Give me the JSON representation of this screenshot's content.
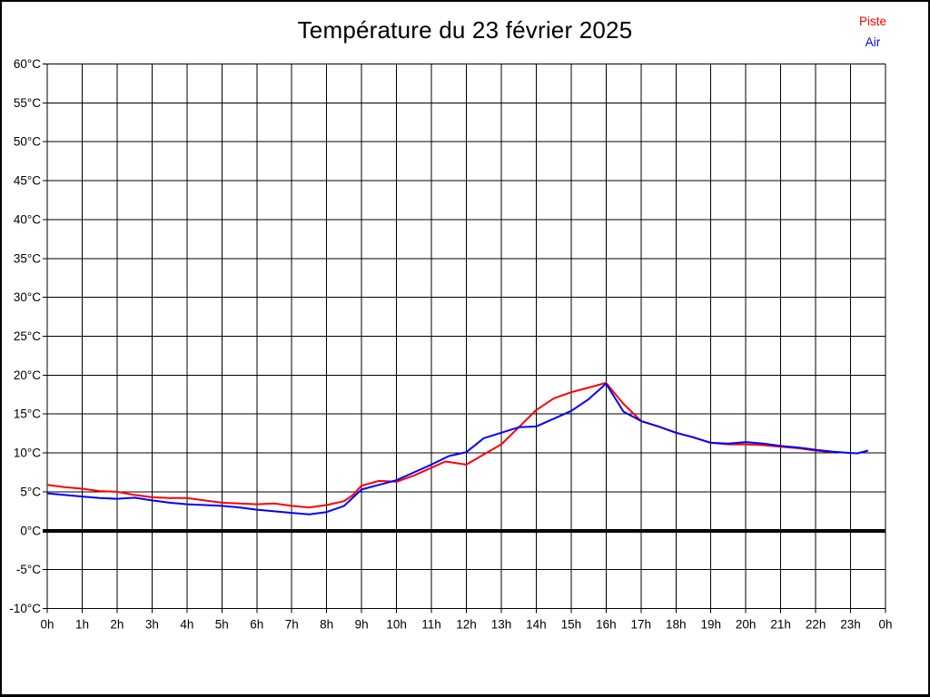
{
  "title": "Température du 23 février 2025",
  "legend": {
    "items": [
      {
        "label": "Piste",
        "color": "#ff0000"
      },
      {
        "label": "Air",
        "color": "#0000ff"
      }
    ]
  },
  "chart_data": {
    "type": "line",
    "title": "Température du 23 février 2025",
    "xlabel": "",
    "ylabel": "",
    "xlim": [
      0,
      24
    ],
    "ylim": [
      -10,
      60
    ],
    "y_step": 5,
    "x_step": 1,
    "grid": true,
    "zero_line_thick": true,
    "legend_position": "top-right",
    "x_tick_labels": [
      "0h",
      "1h",
      "2h",
      "3h",
      "4h",
      "5h",
      "6h",
      "7h",
      "8h",
      "9h",
      "10h",
      "11h",
      "12h",
      "13h",
      "14h",
      "15h",
      "16h",
      "17h",
      "18h",
      "19h",
      "20h",
      "21h",
      "22h",
      "23h",
      "0h"
    ],
    "y_tick_labels": [
      "60°C",
      "55°C",
      "50°C",
      "45°C",
      "40°C",
      "35°C",
      "30°C",
      "25°C",
      "20°C",
      "15°C",
      "10°C",
      "5°C",
      "0°C",
      "-5°C",
      "-10°C"
    ],
    "y_tick_values": [
      60,
      55,
      50,
      45,
      40,
      35,
      30,
      25,
      20,
      15,
      10,
      5,
      0,
      -5,
      -10
    ],
    "series": [
      {
        "name": "Piste",
        "color": "#ff0000",
        "points": [
          [
            0,
            5.9
          ],
          [
            0.5,
            5.6
          ],
          [
            1,
            5.4
          ],
          [
            1.5,
            5.1
          ],
          [
            2,
            5.0
          ],
          [
            2.5,
            4.6
          ],
          [
            3,
            4.3
          ],
          [
            3.5,
            4.2
          ],
          [
            4,
            4.2
          ],
          [
            4.5,
            3.9
          ],
          [
            5,
            3.6
          ],
          [
            5.5,
            3.5
          ],
          [
            6,
            3.4
          ],
          [
            6.5,
            3.5
          ],
          [
            7,
            3.2
          ],
          [
            7.5,
            3.0
          ],
          [
            8,
            3.3
          ],
          [
            8.5,
            3.8
          ],
          [
            8.75,
            4.6
          ],
          [
            9,
            5.8
          ],
          [
            9.5,
            6.4
          ],
          [
            10,
            6.3
          ],
          [
            10.5,
            7.1
          ],
          [
            11,
            8.1
          ],
          [
            11.4,
            8.9
          ],
          [
            12,
            8.5
          ],
          [
            12.5,
            9.8
          ],
          [
            13,
            11.1
          ],
          [
            13.5,
            13.3
          ],
          [
            14,
            15.5
          ],
          [
            14.5,
            17.0
          ],
          [
            15,
            17.8
          ],
          [
            15.5,
            18.4
          ],
          [
            16,
            19.0
          ],
          [
            16.5,
            16.3
          ],
          [
            17,
            14.1
          ],
          [
            17.5,
            13.4
          ],
          [
            18,
            12.6
          ],
          [
            18.5,
            12.0
          ],
          [
            19,
            11.3
          ],
          [
            19.5,
            11.1
          ],
          [
            20,
            11.1
          ],
          [
            20.5,
            11.0
          ],
          [
            21,
            10.8
          ],
          [
            21.5,
            10.6
          ],
          [
            22,
            10.3
          ],
          [
            22.5,
            10.1
          ]
        ]
      },
      {
        "name": "Air",
        "color": "#0000ff",
        "points": [
          [
            0,
            4.8
          ],
          [
            0.5,
            4.6
          ],
          [
            1,
            4.4
          ],
          [
            1.5,
            4.2
          ],
          [
            2,
            4.1
          ],
          [
            2.5,
            4.25
          ],
          [
            3,
            3.9
          ],
          [
            3.5,
            3.6
          ],
          [
            4,
            3.4
          ],
          [
            4.5,
            3.3
          ],
          [
            5,
            3.2
          ],
          [
            5.5,
            3.0
          ],
          [
            6,
            2.7
          ],
          [
            6.5,
            2.5
          ],
          [
            7,
            2.3
          ],
          [
            7.5,
            2.1
          ],
          [
            8,
            2.4
          ],
          [
            8.5,
            3.2
          ],
          [
            9,
            5.3
          ],
          [
            9.5,
            5.9
          ],
          [
            10,
            6.5
          ],
          [
            10.5,
            7.5
          ],
          [
            11,
            8.5
          ],
          [
            11.5,
            9.6
          ],
          [
            12,
            10.1
          ],
          [
            12.5,
            11.9
          ],
          [
            13,
            12.6
          ],
          [
            13.5,
            13.3
          ],
          [
            14,
            13.4
          ],
          [
            14.5,
            14.4
          ],
          [
            15,
            15.4
          ],
          [
            15.5,
            16.9
          ],
          [
            16,
            18.9
          ],
          [
            16.5,
            15.3
          ],
          [
            17,
            14.1
          ],
          [
            17.5,
            13.4
          ],
          [
            18,
            12.6
          ],
          [
            18.5,
            12.0
          ],
          [
            19,
            11.3
          ],
          [
            19.5,
            11.2
          ],
          [
            20,
            11.4
          ],
          [
            20.5,
            11.2
          ],
          [
            21,
            10.9
          ],
          [
            21.5,
            10.7
          ],
          [
            22,
            10.4
          ],
          [
            22.5,
            10.15
          ],
          [
            23,
            10.0
          ],
          [
            23.2,
            9.95
          ],
          [
            23.5,
            10.3
          ]
        ]
      }
    ]
  }
}
